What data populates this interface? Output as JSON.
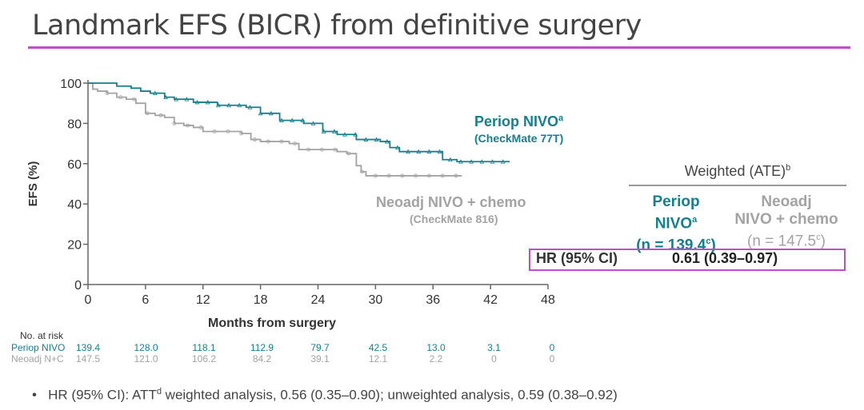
{
  "title": "Landmark EFS (BICR) from definitive surgery",
  "chart_data": {
    "type": "line",
    "xlabel": "Months from surgery",
    "ylabel": "EFS (%)",
    "xlim": [
      0,
      48
    ],
    "ylim": [
      0,
      100
    ],
    "x_ticks": [
      0,
      6,
      12,
      18,
      24,
      30,
      36,
      42,
      48
    ],
    "y_ticks": [
      0,
      20,
      40,
      60,
      80,
      100
    ],
    "series": [
      {
        "name": "Periop NIVO",
        "label_main": "Periop NIVO",
        "label_sup": "a",
        "label_sub": "(CheckMate 77T)",
        "color": "#157f8c",
        "points": [
          [
            0,
            100
          ],
          [
            2.5,
            100
          ],
          [
            3,
            98.5
          ],
          [
            4.5,
            97.5
          ],
          [
            5.5,
            96
          ],
          [
            6.5,
            95
          ],
          [
            8,
            93
          ],
          [
            9,
            92
          ],
          [
            11,
            90.5
          ],
          [
            13.5,
            89
          ],
          [
            16.5,
            88
          ],
          [
            18,
            85
          ],
          [
            20,
            81.5
          ],
          [
            22.5,
            80
          ],
          [
            24.5,
            76
          ],
          [
            26,
            74.5
          ],
          [
            28,
            72
          ],
          [
            30.5,
            71
          ],
          [
            31.5,
            68
          ],
          [
            32.5,
            66
          ],
          [
            35.5,
            66
          ],
          [
            37,
            62
          ],
          [
            38.5,
            61
          ],
          [
            44,
            61
          ]
        ]
      },
      {
        "name": "Neoadj NIVO + chemo",
        "label_main": "Neoadj NIVO + chemo",
        "label_sub": "(CheckMate 816)",
        "color": "#a3a3a3",
        "points": [
          [
            0,
            100
          ],
          [
            0.5,
            97
          ],
          [
            1,
            96
          ],
          [
            2,
            95
          ],
          [
            3,
            93
          ],
          [
            4,
            92
          ],
          [
            5,
            90
          ],
          [
            6,
            85
          ],
          [
            7,
            84
          ],
          [
            8,
            83
          ],
          [
            9,
            80
          ],
          [
            10,
            79
          ],
          [
            11,
            78
          ],
          [
            12,
            76
          ],
          [
            13,
            76
          ],
          [
            16,
            75
          ],
          [
            17,
            72
          ],
          [
            18,
            71
          ],
          [
            21,
            70
          ],
          [
            22,
            67
          ],
          [
            24,
            67
          ],
          [
            26,
            66
          ],
          [
            27,
            65
          ],
          [
            28,
            59
          ],
          [
            28.5,
            56
          ],
          [
            29,
            54
          ],
          [
            39,
            54
          ]
        ]
      }
    ]
  },
  "at_risk": {
    "header": "No. at risk",
    "rows": [
      {
        "name": "Periop NIVO",
        "color": "#157f8c",
        "values": [
          "139.4",
          "128.0",
          "118.1",
          "112.9",
          "79.7",
          "42.5",
          "13.0",
          "3.1",
          "0"
        ]
      },
      {
        "name": "Neoadj N+C",
        "color": "#a3a3a3",
        "values": [
          "147.5",
          "121.0",
          "106.2",
          "84.2",
          "39.1",
          "12.1",
          "2.2",
          "0",
          "0"
        ]
      }
    ]
  },
  "weighted_table": {
    "header": "Weighted (ATE)",
    "header_sup": "b",
    "col1": {
      "line1": "Periop",
      "line2": "NIVO",
      "line2_sup": "a",
      "line3": "(n = 139.4",
      "line3_sup": "c",
      "line3_end": ")"
    },
    "col2": {
      "line1": "Neoadj",
      "line2": "NIVO + chemo",
      "line3": "(n = 147.5",
      "line3_sup": "c",
      "line3_end": ")"
    },
    "hr_label": "HR (95% CI)",
    "hr_value": "0.61 (0.39–0.97)"
  },
  "footnote": {
    "bullet": "•",
    "part1": "HR (95% CI): ATT",
    "sup": "d",
    "part2": " weighted analysis, 0.56 (0.35–0.90); unweighted analysis, 0.59 (0.38–0.92)"
  }
}
